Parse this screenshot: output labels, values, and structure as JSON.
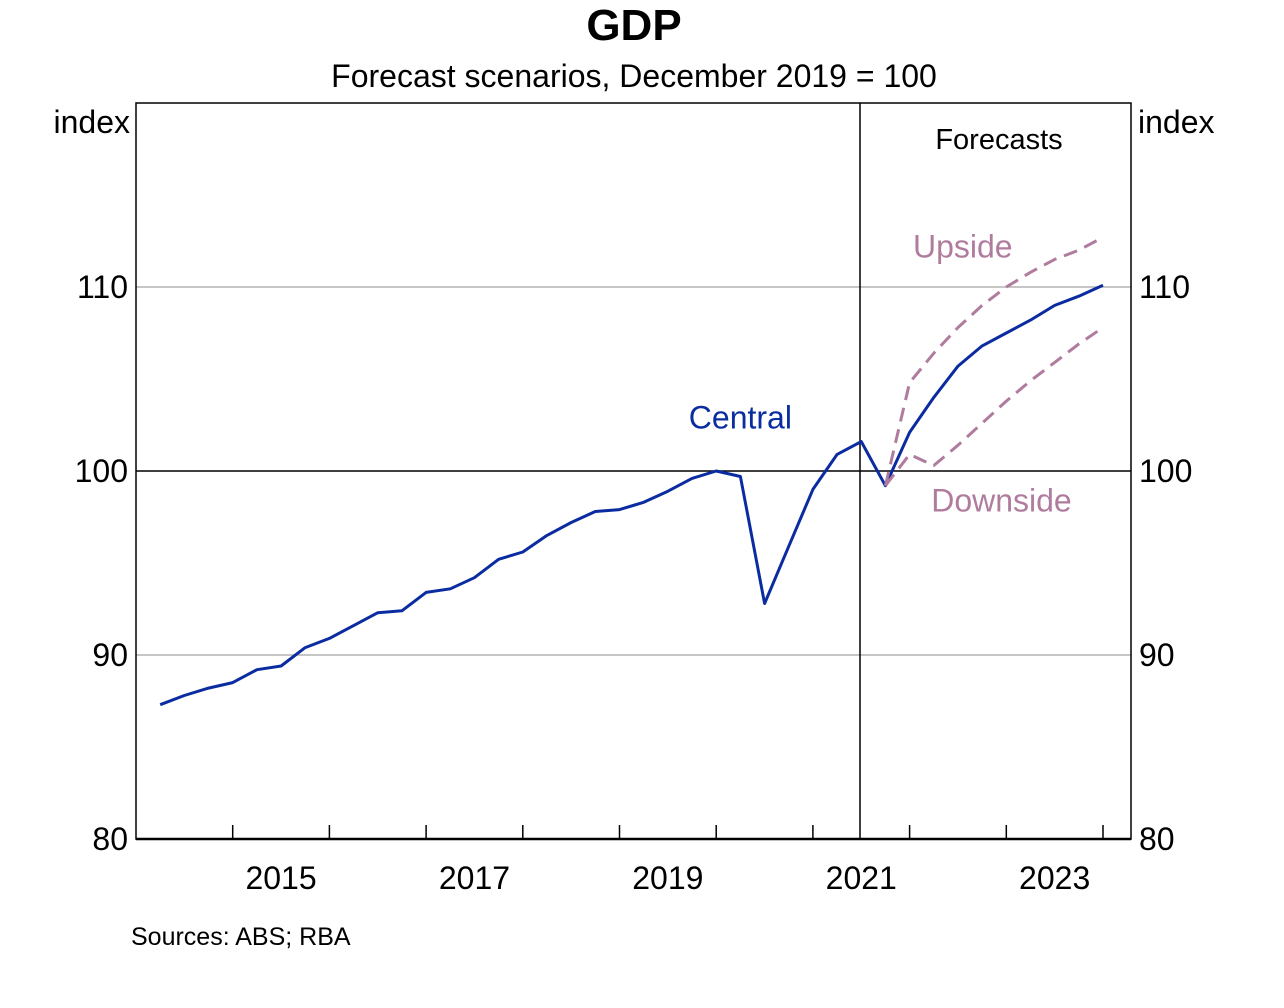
{
  "chart_data": {
    "type": "line",
    "title": "GDP",
    "subtitle": "Forecast scenarios, December 2019 = 100",
    "ylabel_left": "index",
    "ylabel_right": "index",
    "xlabel": "",
    "ylim": [
      80,
      120
    ],
    "xlim": [
      2014.0,
      2024.3
    ],
    "yticks": [
      80,
      90,
      100,
      110
    ],
    "ytick_labels": [
      "80",
      "90",
      "100",
      "110"
    ],
    "xtick_positions": [
      2015,
      2016,
      2017,
      2018,
      2019,
      2020,
      2021,
      2022,
      2023,
      2024
    ],
    "xtick_labels": [
      {
        "label": "2015",
        "at": 2015.5
      },
      {
        "label": "2017",
        "at": 2017.5
      },
      {
        "label": "2019",
        "at": 2019.5
      },
      {
        "label": "2021",
        "at": 2021.5
      },
      {
        "label": "2023",
        "at": 2023.5
      }
    ],
    "grid": true,
    "reference_line": 100,
    "forecast_start": 2021.5,
    "forecast_label": "Forecasts",
    "series": [
      {
        "name": "Central",
        "color": "#0b2ca0",
        "style": "solid",
        "x": [
          2014.25,
          2014.5,
          2014.75,
          2015.0,
          2015.25,
          2015.5,
          2015.75,
          2016.0,
          2016.25,
          2016.5,
          2016.75,
          2017.0,
          2017.25,
          2017.5,
          2017.75,
          2018.0,
          2018.25,
          2018.5,
          2018.75,
          2019.0,
          2019.25,
          2019.5,
          2019.75,
          2020.0,
          2020.25,
          2020.5,
          2020.75,
          2021.0,
          2021.25,
          2021.5,
          2021.75,
          2022.0,
          2022.25,
          2022.5,
          2022.75,
          2023.0,
          2023.25,
          2023.5,
          2023.75,
          2024.0
        ],
        "values": [
          87.3,
          87.8,
          88.2,
          88.5,
          89.2,
          89.4,
          90.4,
          90.9,
          91.6,
          92.3,
          92.4,
          93.4,
          93.6,
          94.2,
          95.2,
          95.6,
          96.5,
          97.2,
          97.8,
          97.9,
          98.3,
          98.9,
          99.6,
          100.0,
          99.7,
          92.8,
          95.9,
          99.0,
          100.9,
          101.6,
          99.2,
          102.1,
          104.0,
          105.7,
          106.8,
          107.5,
          108.2,
          109.0,
          109.5,
          110.1
        ]
      },
      {
        "name": "Upside",
        "color": "#b07c9e",
        "style": "dashed",
        "x": [
          2021.75,
          2022.0,
          2022.25,
          2022.5,
          2022.75,
          2023.0,
          2023.25,
          2023.5,
          2023.75,
          2024.0
        ],
        "values": [
          99.2,
          104.8,
          106.4,
          107.8,
          109.0,
          110.0,
          110.8,
          111.5,
          112.0,
          112.7
        ]
      },
      {
        "name": "Downside",
        "color": "#b07c9e",
        "style": "dashed",
        "x": [
          2021.75,
          2022.0,
          2022.25,
          2022.5,
          2022.75,
          2023.0,
          2023.25,
          2023.5,
          2023.75,
          2024.0
        ],
        "values": [
          99.2,
          100.9,
          100.3,
          101.4,
          102.6,
          103.8,
          104.9,
          105.9,
          106.9,
          107.8
        ]
      }
    ],
    "annotations": [
      {
        "text": "Central",
        "color": "#0b2ca0",
        "x": 2020.25,
        "y": 102.3
      },
      {
        "text": "Upside",
        "color": "#b07c9e",
        "x": 2022.55,
        "y": 111.6
      },
      {
        "text": "Downside",
        "color": "#b07c9e",
        "x": 2022.95,
        "y": 97.8
      }
    ],
    "source": "Sources: ABS; RBA"
  }
}
